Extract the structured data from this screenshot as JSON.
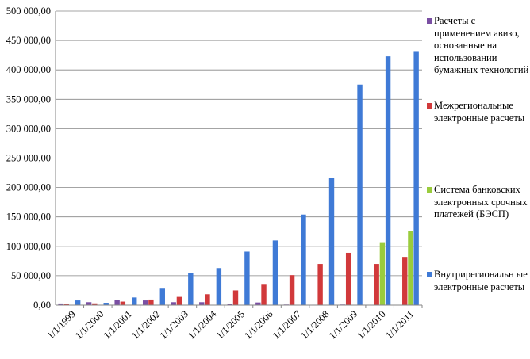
{
  "chart_data": {
    "type": "bar",
    "categories": [
      "1/1/1999",
      "1/1/2000",
      "1/1/2001",
      "1/1/2002",
      "1/1/2003",
      "1/1/2004",
      "1/1/2005",
      "1/1/2006",
      "1/1/2007",
      "1/1/2008",
      "1/1/2009",
      "1/1/2010",
      "1/1/2011"
    ],
    "y_tick_labels": [
      "0,00",
      "50 000,00",
      "100 000,00",
      "150 000,00",
      "200 000,00",
      "250 000,00",
      "300 000,00",
      "350 000,00",
      "400 000,00",
      "450 000,00",
      "500 000,00"
    ],
    "ylim": [
      0,
      500000
    ],
    "grid": "horizontal",
    "legend_position": "right",
    "series": [
      {
        "name": "Расчеты с применением авизо,\n основанные на использовании бумажных технологий",
        "color": "#7a4fa3",
        "values": [
          2800,
          5000,
          9000,
          8000,
          5000,
          5000,
          2000,
          4500,
          1000,
          700,
          1000,
          600,
          600
        ]
      },
      {
        "name": "Межрегиональные электронные расчеты",
        "color": "#d1393b",
        "values": [
          1500,
          3000,
          6000,
          9500,
          14000,
          18500,
          25000,
          36000,
          51000,
          70000,
          89000,
          70000,
          82000
        ]
      },
      {
        "name": "Система банковских электронных срочных платежей (БЭСП)",
        "color": "#9acc3d",
        "values": [
          0,
          0,
          0,
          0,
          0,
          0,
          0,
          0,
          0,
          0,
          0,
          107000,
          126000
        ]
      },
      {
        "name": "Внутрирегиональн ые электронные расчеты",
        "color": "#3f7ad6",
        "values": [
          8000,
          4000,
          13000,
          28000,
          54000,
          63000,
          91000,
          110000,
          154000,
          216000,
          375000,
          423000,
          432000
        ]
      }
    ],
    "extra_series_values_note": ""
  }
}
